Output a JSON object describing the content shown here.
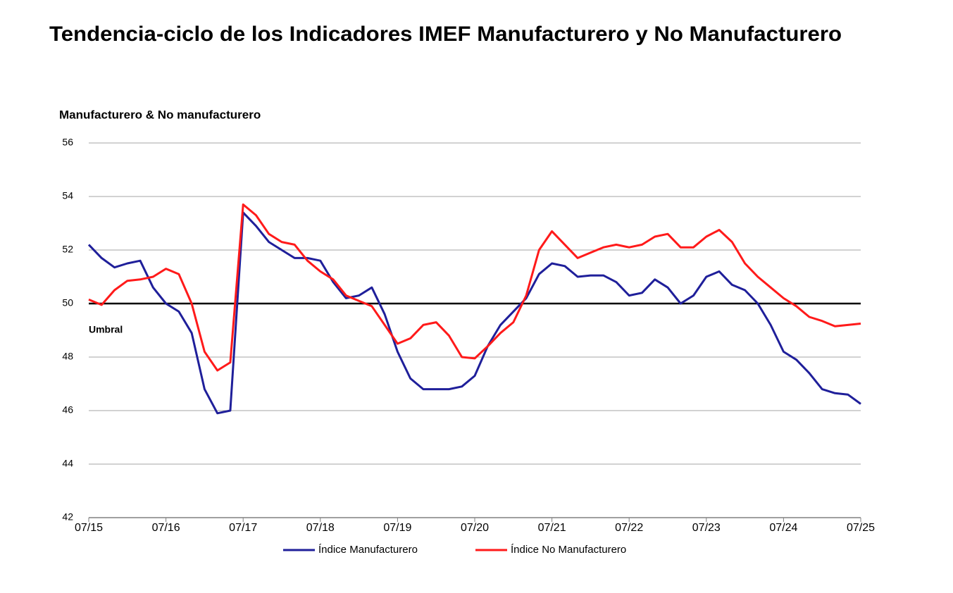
{
  "chart_data": {
    "type": "line",
    "title": "Tendencia-ciclo de los Indicadores IMEF Manufacturero y No Manufacturero",
    "y_label": "Manufacturero & No manufacturero",
    "categories": [
      "07/15",
      null,
      null,
      null,
      null,
      null,
      "07/16",
      null,
      null,
      null,
      null,
      null,
      "07/17",
      null,
      null,
      null,
      null,
      null,
      "07/18",
      null,
      null,
      null,
      null,
      null,
      "07/19",
      null,
      null,
      null,
      null,
      null,
      "07/20",
      null,
      null,
      null,
      null,
      null,
      "07/21",
      null,
      null,
      null,
      null,
      null,
      "07/22",
      null,
      null,
      null,
      null,
      null,
      "07/23",
      null,
      null,
      null,
      null,
      null,
      "07/24",
      null,
      null,
      null,
      null,
      null,
      "07/25"
    ],
    "series": [
      {
        "name": "Índice Manufacturero",
        "color": "#1f1f9a",
        "values": [
          52.2,
          51.7,
          51.35,
          51.5,
          51.6,
          50.6,
          50.0,
          49.7,
          48.9,
          46.8,
          45.9,
          46.0,
          53.4,
          52.9,
          52.3,
          52.0,
          51.7,
          51.7,
          51.6,
          50.8,
          50.2,
          50.3,
          50.6,
          49.6,
          48.2,
          47.2,
          46.8,
          46.8,
          46.8,
          46.9,
          47.3,
          48.4,
          49.2,
          49.7,
          50.2,
          51.1,
          51.5,
          51.4,
          51.0,
          51.05,
          51.05,
          50.8,
          50.3,
          50.4,
          50.9,
          50.6,
          50.0,
          50.3,
          51.0,
          51.2,
          50.7,
          50.5,
          50.0,
          49.2,
          48.2,
          47.9,
          47.4,
          46.8,
          46.65,
          46.6,
          46.25
        ]
      },
      {
        "name": "Índice No Manufacturero",
        "color": "#ff1a1a",
        "values": [
          50.15,
          49.95,
          50.5,
          50.85,
          50.9,
          51.0,
          51.3,
          51.1,
          50.0,
          48.2,
          47.5,
          47.8,
          53.7,
          53.3,
          52.6,
          52.3,
          52.2,
          51.6,
          51.2,
          50.9,
          50.3,
          50.1,
          49.9,
          49.2,
          48.5,
          48.7,
          49.2,
          49.3,
          48.8,
          48.0,
          47.95,
          48.4,
          48.9,
          49.3,
          50.3,
          52.0,
          52.7,
          52.2,
          51.7,
          51.9,
          52.1,
          52.2,
          52.1,
          52.2,
          52.5,
          52.6,
          52.1,
          52.1,
          52.5,
          52.75,
          52.3,
          51.5,
          51.0,
          50.6,
          50.2,
          49.9,
          49.5,
          49.35,
          49.15,
          49.2,
          49.25
        ]
      }
    ],
    "threshold": {
      "value": 50,
      "label": "Umbral"
    },
    "ylim": [
      42,
      56
    ],
    "yticks": [
      42,
      44,
      46,
      48,
      50,
      52,
      54,
      56
    ],
    "grid": true,
    "legend": "bottom"
  }
}
